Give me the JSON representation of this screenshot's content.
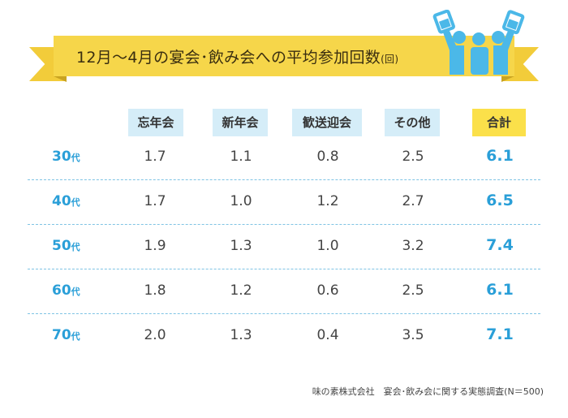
{
  "title": {
    "main": "12月〜4月の宴会･飲み会への平均参加回数",
    "unit": "(回)"
  },
  "columns": [
    "忘年会",
    "新年会",
    "歓送迎会",
    "その他",
    "合計"
  ],
  "rows": [
    {
      "age": "30",
      "unit": "代",
      "values": [
        "1.7",
        "1.1",
        "0.8",
        "2.5"
      ],
      "total": "6.1"
    },
    {
      "age": "40",
      "unit": "代",
      "values": [
        "1.7",
        "1.0",
        "1.2",
        "2.7"
      ],
      "total": "6.5"
    },
    {
      "age": "50",
      "unit": "代",
      "values": [
        "1.9",
        "1.3",
        "1.0",
        "3.2"
      ],
      "total": "7.4"
    },
    {
      "age": "60",
      "unit": "代",
      "values": [
        "1.8",
        "1.2",
        "0.6",
        "2.5"
      ],
      "total": "6.1"
    },
    {
      "age": "70",
      "unit": "代",
      "values": [
        "2.0",
        "1.3",
        "0.4",
        "3.5"
      ],
      "total": "7.1"
    }
  ],
  "source": "味の素株式会社　宴会･飲み会に関する実態調査(N＝500)",
  "colors": {
    "banner": "#f6d64a",
    "header": "#d5edf8",
    "total_header": "#fbe04a",
    "accent": "#2a9fd8",
    "illustration": "#4bb8e8"
  },
  "icons": {
    "illustration": "people-toasting-icon"
  }
}
